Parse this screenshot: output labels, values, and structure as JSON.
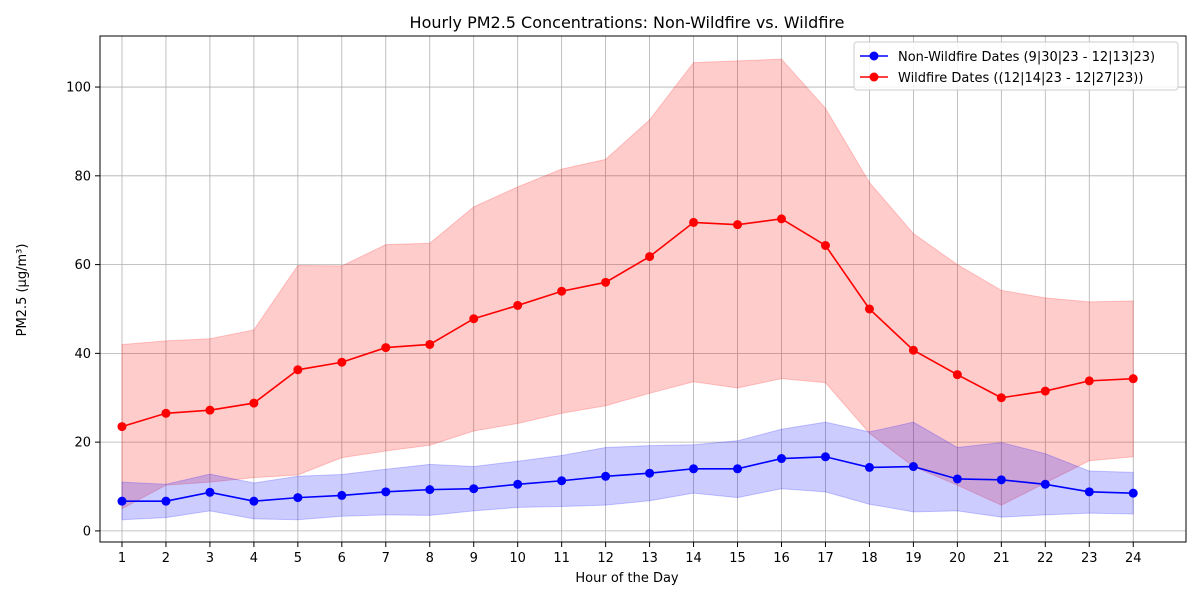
{
  "chart_data": {
    "type": "line",
    "title": "Hourly PM2.5 Concentrations: Non-Wildfire vs. Wildfire",
    "xlabel": "Hour of the Day",
    "ylabel": "PM2.5 (µg/m³)",
    "x": [
      1,
      2,
      3,
      4,
      5,
      6,
      7,
      8,
      9,
      10,
      11,
      12,
      13,
      14,
      15,
      16,
      17,
      18,
      19,
      20,
      21,
      22,
      23,
      24
    ],
    "x_ticks": [
      "1",
      "2",
      "3",
      "4",
      "5",
      "6",
      "7",
      "8",
      "9",
      "10",
      "11",
      "12",
      "13",
      "14",
      "15",
      "16",
      "17",
      "18",
      "19",
      "20",
      "21",
      "22",
      "23",
      "24"
    ],
    "xlim": [
      0.5,
      25.2
    ],
    "ylim": [
      -2.5,
      111.5
    ],
    "y_ticks": [
      0,
      20,
      40,
      60,
      80,
      100
    ],
    "grid": true,
    "legend_position": "top-right",
    "series": [
      {
        "name": "Non-Wildfire Dates (9|30|23 - 12|13|23)",
        "color": "#0000ff",
        "fill_color": "#0000ff",
        "values": [
          6.7,
          6.7,
          8.7,
          6.7,
          7.5,
          8.0,
          8.8,
          9.3,
          9.5,
          10.5,
          11.3,
          12.3,
          13.0,
          14.0,
          14.0,
          16.3,
          16.7,
          14.3,
          14.5,
          11.7,
          11.5,
          10.5,
          8.8,
          8.5
        ],
        "lower": [
          2.5,
          3.0,
          4.5,
          2.7,
          2.5,
          3.3,
          3.6,
          3.5,
          4.5,
          5.3,
          5.5,
          5.8,
          6.8,
          8.5,
          7.5,
          9.5,
          8.8,
          6.0,
          4.3,
          4.5,
          3.1,
          3.6,
          4.0,
          3.8
        ],
        "upper": [
          11.0,
          10.5,
          12.8,
          10.8,
          12.3,
          12.7,
          13.9,
          15.0,
          14.5,
          15.7,
          17.0,
          18.8,
          19.2,
          19.4,
          20.3,
          22.9,
          24.5,
          22.3,
          24.5,
          18.8,
          19.9,
          17.4,
          13.5,
          13.2
        ]
      },
      {
        "name": "Wildfire Dates ((12|14|23 - 12|27|23))",
        "color": "#ff0000",
        "fill_color": "#ff0000",
        "values": [
          23.5,
          26.5,
          27.2,
          28.8,
          36.3,
          38.0,
          41.3,
          42.0,
          47.8,
          50.8,
          54.0,
          56.0,
          61.8,
          69.5,
          69.0,
          70.3,
          64.3,
          50.0,
          40.7,
          35.2,
          30.0,
          31.5,
          33.8,
          34.3
        ],
        "lower": [
          5.0,
          10.3,
          11.0,
          12.0,
          12.6,
          16.5,
          18.0,
          19.3,
          22.5,
          24.2,
          26.5,
          28.2,
          31.0,
          33.6,
          32.2,
          34.3,
          33.4,
          22.0,
          14.5,
          10.3,
          5.8,
          10.8,
          15.8,
          16.7
        ],
        "upper": [
          42.0,
          42.8,
          43.3,
          45.3,
          59.8,
          59.7,
          64.5,
          64.8,
          73.0,
          77.5,
          81.5,
          83.7,
          92.6,
          105.5,
          105.9,
          106.3,
          95.2,
          78.5,
          67.0,
          60.0,
          54.2,
          52.5,
          51.6,
          51.8
        ]
      }
    ]
  }
}
